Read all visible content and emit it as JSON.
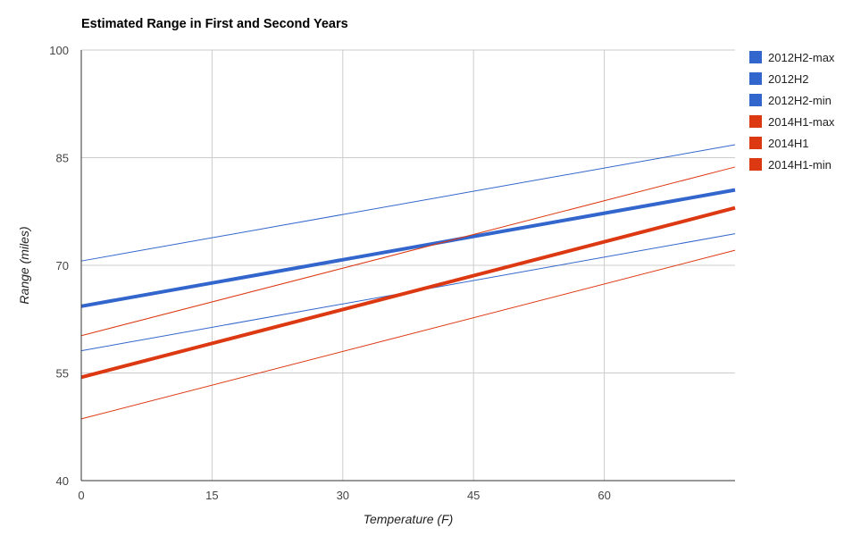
{
  "chart_data": {
    "type": "line",
    "title": "Estimated Range in First and Second Years",
    "xlabel": "Temperature (F)",
    "ylabel": "Range (miles)",
    "xlim": [
      0,
      75
    ],
    "ylim": [
      40,
      100
    ],
    "xticks": [
      0,
      15,
      30,
      45,
      60
    ],
    "yticks": [
      40,
      55,
      70,
      85,
      100
    ],
    "grid": true,
    "legend_position": "right",
    "series": [
      {
        "name": "2012H2-max",
        "color": "#3366cc",
        "weight": "thin",
        "x": [
          0,
          75
        ],
        "y": [
          70.6,
          86.8
        ]
      },
      {
        "name": "2012H2",
        "color": "#3366cc",
        "weight": "thick",
        "x": [
          0,
          75
        ],
        "y": [
          64.3,
          80.5
        ]
      },
      {
        "name": "2012H2-min",
        "color": "#3366cc",
        "weight": "thin",
        "x": [
          0,
          75
        ],
        "y": [
          58.1,
          74.4
        ]
      },
      {
        "name": "2014H1-max",
        "color": "#dc3912",
        "weight": "thin",
        "x": [
          0,
          75
        ],
        "y": [
          60.2,
          83.7
        ]
      },
      {
        "name": "2014H1",
        "color": "#dc3912",
        "weight": "thick",
        "x": [
          0,
          75
        ],
        "y": [
          54.4,
          78.0
        ]
      },
      {
        "name": "2014H1-min",
        "color": "#dc3912",
        "weight": "thin",
        "x": [
          0,
          75
        ],
        "y": [
          48.6,
          72.1
        ]
      }
    ]
  }
}
